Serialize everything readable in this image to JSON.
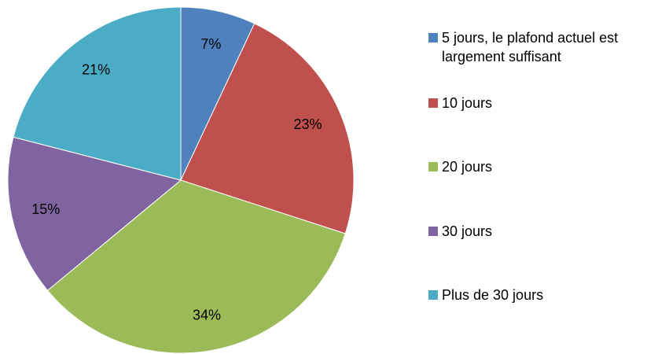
{
  "chart_data": {
    "type": "pie",
    "categories": [
      "5 jours, le plafond actuel est largement suffisant",
      "10 jours",
      "20 jours",
      "30 jours",
      "Plus de 30 jours"
    ],
    "values": [
      7,
      23,
      34,
      15,
      21
    ],
    "value_labels": [
      "7%",
      "23%",
      "34%",
      "15%",
      "21%"
    ],
    "colors": [
      "#4f81bd",
      "#c0504d",
      "#9bbb59",
      "#8064a2",
      "#4bacc6"
    ],
    "legend": "right"
  }
}
